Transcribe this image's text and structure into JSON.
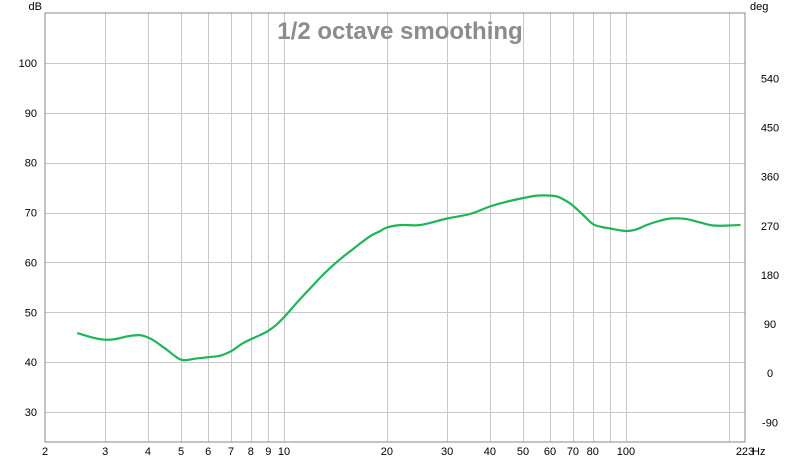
{
  "chart_data": {
    "type": "line",
    "title": "1/2 octave smoothing",
    "xlabel": "Hz",
    "ylabel": "dB",
    "y2label": "deg",
    "x_scale": "log",
    "xlim": [
      2,
      223
    ],
    "ylim": [
      24,
      110
    ],
    "y2lim": [
      -126,
      660
    ],
    "grid": true,
    "legend": "none",
    "x_ticks": [
      {
        "value": 2,
        "label": "2"
      },
      {
        "value": 3,
        "label": "3"
      },
      {
        "value": 4,
        "label": "4"
      },
      {
        "value": 5,
        "label": "5"
      },
      {
        "value": 6,
        "label": "6"
      },
      {
        "value": 7,
        "label": "7"
      },
      {
        "value": 8,
        "label": "8"
      },
      {
        "value": 9,
        "label": "9"
      },
      {
        "value": 10,
        "label": "10"
      },
      {
        "value": 20,
        "label": "20"
      },
      {
        "value": 30,
        "label": "30"
      },
      {
        "value": 40,
        "label": "40"
      },
      {
        "value": 50,
        "label": "50"
      },
      {
        "value": 60,
        "label": "60"
      },
      {
        "value": 70,
        "label": "70"
      },
      {
        "value": 80,
        "label": "80"
      },
      {
        "value": 100,
        "label": "100"
      },
      {
        "value": 223,
        "label": "223"
      }
    ],
    "minor_x_gridlines": [
      90,
      200
    ],
    "y_ticks": [
      {
        "value": 100,
        "label": "100"
      },
      {
        "value": 90,
        "label": "90"
      },
      {
        "value": 80,
        "label": "80"
      },
      {
        "value": 70,
        "label": "70"
      },
      {
        "value": 60,
        "label": "60"
      },
      {
        "value": 50,
        "label": "50"
      },
      {
        "value": 40,
        "label": "40"
      },
      {
        "value": 30,
        "label": "30"
      }
    ],
    "y2_ticks": [
      {
        "value": 540,
        "label": "540"
      },
      {
        "value": 450,
        "label": "450"
      },
      {
        "value": 360,
        "label": "360"
      },
      {
        "value": 270,
        "label": "270"
      },
      {
        "value": 180,
        "label": "180"
      },
      {
        "value": 90,
        "label": "90"
      },
      {
        "value": 0,
        "label": "0"
      },
      {
        "value": -90,
        "label": "-90"
      }
    ],
    "series": [
      {
        "color": "#20b45a",
        "x": [
          2.5,
          2.8,
          3.0,
          3.2,
          3.5,
          3.8,
          4.1,
          4.5,
          5.0,
          5.5,
          6.0,
          6.5,
          7.0,
          7.5,
          8.0,
          8.5,
          9.0,
          9.5,
          10,
          11,
          12,
          13,
          14,
          15,
          16,
          17,
          18,
          19,
          20,
          22,
          25,
          30,
          35,
          40,
          45,
          50,
          55,
          60,
          63,
          67,
          70,
          75,
          80,
          85,
          90,
          100,
          107,
          115,
          125,
          135,
          150,
          165,
          180,
          200,
          215
        ],
        "y": [
          45.8,
          44.8,
          44.5,
          44.6,
          45.2,
          45.4,
          44.6,
          42.7,
          40.5,
          40.7,
          41.0,
          41.3,
          42.2,
          43.6,
          44.6,
          45.4,
          46.3,
          47.5,
          49.0,
          52.2,
          55.0,
          57.5,
          59.6,
          61.3,
          62.8,
          64.2,
          65.4,
          66.2,
          67.0,
          67.5,
          67.5,
          68.8,
          69.7,
          71.2,
          72.2,
          72.9,
          73.4,
          73.4,
          73.2,
          72.3,
          71.4,
          69.5,
          67.7,
          67.1,
          66.8,
          66.3,
          66.6,
          67.5,
          68.3,
          68.8,
          68.7,
          68.0,
          67.4,
          67.4,
          67.5
        ]
      }
    ]
  }
}
